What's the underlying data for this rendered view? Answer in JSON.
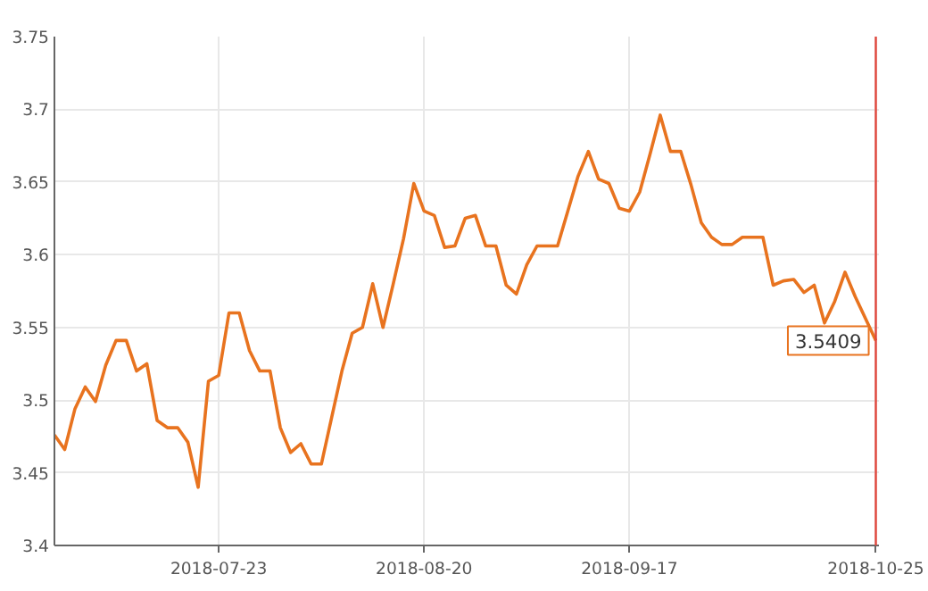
{
  "chart_data": {
    "type": "line",
    "categories": [
      null,
      null,
      null,
      null,
      null,
      null,
      null,
      null,
      null,
      null,
      null,
      null,
      null,
      null,
      null,
      null,
      "2018-07-23",
      null,
      null,
      null,
      null,
      null,
      null,
      null,
      null,
      null,
      null,
      null,
      null,
      null,
      null,
      null,
      null,
      null,
      null,
      null,
      "2018-08-20",
      null,
      null,
      null,
      null,
      null,
      null,
      null,
      null,
      null,
      null,
      null,
      null,
      null,
      null,
      null,
      null,
      null,
      null,
      null,
      "2018-09-17",
      null,
      null,
      null,
      null,
      null,
      null,
      null,
      null,
      null,
      null,
      null,
      null,
      null,
      null,
      null,
      null,
      null,
      null,
      null,
      null,
      null,
      null,
      null,
      "2018-10-25"
    ],
    "series": [
      {
        "color": "#e8731f",
        "values": [
          3.476,
          3.466,
          3.494,
          3.509,
          3.499,
          3.524,
          3.541,
          3.541,
          3.52,
          3.525,
          3.486,
          3.481,
          3.481,
          3.471,
          3.44,
          3.513,
          3.517,
          3.56,
          3.56,
          3.534,
          3.52,
          3.52,
          3.481,
          3.464,
          3.47,
          3.456,
          3.456,
          3.488,
          3.52,
          3.546,
          3.55,
          3.58,
          3.55,
          3.58,
          3.611,
          3.649,
          3.63,
          3.627,
          3.605,
          3.606,
          3.625,
          3.627,
          3.606,
          3.606,
          3.579,
          3.573,
          3.593,
          3.606,
          3.606,
          3.606,
          3.63,
          3.654,
          3.671,
          3.652,
          3.649,
          3.632,
          3.63,
          3.643,
          3.669,
          3.696,
          3.671,
          3.671,
          3.648,
          3.622,
          3.612,
          3.607,
          3.607,
          3.612,
          3.612,
          3.612,
          3.579,
          3.582,
          3.583,
          3.574,
          3.579,
          3.553,
          3.568,
          3.588,
          3.571,
          3.556,
          3.5409
        ]
      }
    ],
    "ylim": [
      3.4,
      3.75
    ],
    "yticks": [
      3.4,
      3.45,
      3.5,
      3.55,
      3.6,
      3.65,
      3.7,
      3.75
    ],
    "grid": true,
    "marker": "none",
    "line_style": "solid",
    "ref_lines": [
      {
        "axis": "x",
        "value": "2018-10-25",
        "color": "#e0463c"
      }
    ],
    "annotations": [
      {
        "text": "3.5409",
        "x": "2018-10-25",
        "y": 3.5409
      }
    ]
  }
}
